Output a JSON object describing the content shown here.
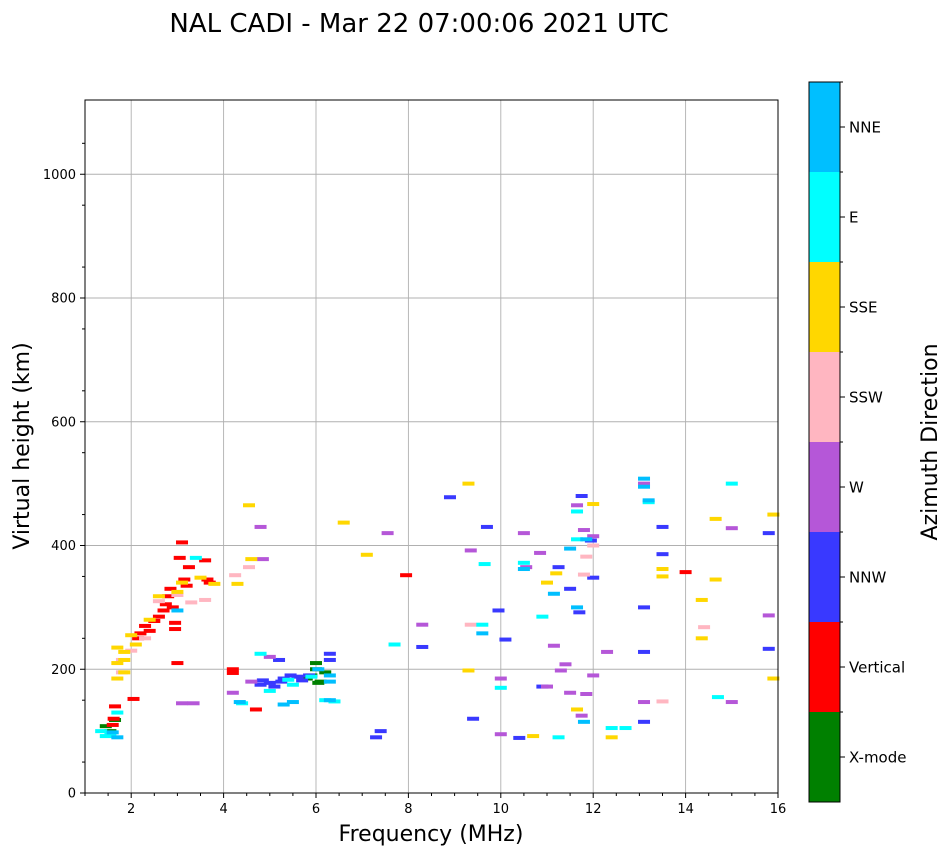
{
  "chart_data": {
    "type": "scatter",
    "title": "NAL CADI - Mar 22 07:00:06 2021 UTC",
    "xlabel": "Frequency (MHz)",
    "ylabel": "Virtual height (km)",
    "xlim": [
      1,
      16
    ],
    "ylim": [
      0,
      1120
    ],
    "xticks": [
      2,
      4,
      6,
      8,
      10,
      12,
      14,
      16
    ],
    "yticks": [
      0,
      200,
      400,
      600,
      800,
      1000
    ],
    "grid": true,
    "marker": "short horizontal dash",
    "colorbar": {
      "label": "Azimuth Direction",
      "categories": [
        {
          "name": "X-mode",
          "color": "#008000"
        },
        {
          "name": "Vertical",
          "color": "#ff0000"
        },
        {
          "name": "NNW",
          "color": "#3939ff"
        },
        {
          "name": "W",
          "color": "#b557d8"
        },
        {
          "name": "SSW",
          "color": "#ffb6c1"
        },
        {
          "name": "SSE",
          "color": "#ffd700"
        },
        {
          "name": "E",
          "color": "#00ffff"
        },
        {
          "name": "NNE",
          "color": "#00bfff"
        }
      ]
    },
    "series": [
      {
        "name": "X-mode",
        "points": [
          [
            5.9,
            190
          ],
          [
            6.0,
            200
          ],
          [
            6.0,
            210
          ],
          [
            6.1,
            180
          ],
          [
            6.2,
            195
          ],
          [
            5.8,
            185
          ],
          [
            1.65,
            118
          ],
          [
            1.55,
            100
          ],
          [
            1.45,
            108
          ],
          [
            6.05,
            178
          ]
        ]
      },
      {
        "name": "Vertical",
        "points": [
          [
            1.62,
            120
          ],
          [
            1.65,
            140
          ],
          [
            1.6,
            110
          ],
          [
            2.05,
            152
          ],
          [
            2.15,
            250
          ],
          [
            2.2,
            258
          ],
          [
            2.3,
            270
          ],
          [
            2.4,
            262
          ],
          [
            2.5,
            278
          ],
          [
            2.6,
            285
          ],
          [
            2.7,
            295
          ],
          [
            2.75,
            305
          ],
          [
            2.8,
            318
          ],
          [
            2.85,
            330
          ],
          [
            2.9,
            300
          ],
          [
            2.95,
            275
          ],
          [
            2.95,
            265
          ],
          [
            3.0,
            210
          ],
          [
            3.05,
            380
          ],
          [
            3.1,
            405
          ],
          [
            3.15,
            345
          ],
          [
            3.2,
            335
          ],
          [
            3.25,
            365
          ],
          [
            3.6,
            376
          ],
          [
            3.65,
            345
          ],
          [
            3.7,
            340
          ],
          [
            4.2,
            200
          ],
          [
            4.2,
            194
          ],
          [
            4.7,
            135
          ],
          [
            7.95,
            352
          ],
          [
            14.0,
            357
          ]
        ]
      },
      {
        "name": "NNW",
        "points": [
          [
            4.8,
            175
          ],
          [
            4.85,
            182
          ],
          [
            5.0,
            178
          ],
          [
            5.1,
            172
          ],
          [
            5.2,
            215
          ],
          [
            5.25,
            180
          ],
          [
            5.3,
            185
          ],
          [
            5.45,
            190
          ],
          [
            5.6,
            188
          ],
          [
            5.7,
            182
          ],
          [
            5.85,
            190
          ],
          [
            6.3,
            215
          ],
          [
            6.3,
            225
          ],
          [
            7.3,
            90
          ],
          [
            7.4,
            100
          ],
          [
            8.3,
            236
          ],
          [
            8.9,
            478
          ],
          [
            9.4,
            120
          ],
          [
            9.7,
            430
          ],
          [
            9.95,
            295
          ],
          [
            10.1,
            248
          ],
          [
            10.4,
            89
          ],
          [
            10.9,
            172
          ],
          [
            11.25,
            365
          ],
          [
            11.5,
            330
          ],
          [
            11.7,
            292
          ],
          [
            11.75,
            480
          ],
          [
            11.95,
            408
          ],
          [
            12.0,
            348
          ],
          [
            13.1,
            300
          ],
          [
            13.1,
            228
          ],
          [
            13.1,
            115
          ],
          [
            13.5,
            430
          ],
          [
            13.5,
            386
          ],
          [
            15.8,
            420
          ],
          [
            15.8,
            233
          ]
        ]
      },
      {
        "name": "W",
        "points": [
          [
            3.1,
            145
          ],
          [
            3.35,
            145
          ],
          [
            4.2,
            162
          ],
          [
            4.6,
            180
          ],
          [
            4.8,
            430
          ],
          [
            4.85,
            378
          ],
          [
            5.0,
            220
          ],
          [
            7.55,
            420
          ],
          [
            8.3,
            272
          ],
          [
            9.35,
            392
          ],
          [
            10.0,
            95
          ],
          [
            10.0,
            185
          ],
          [
            10.5,
            420
          ],
          [
            10.55,
            365
          ],
          [
            10.85,
            388
          ],
          [
            11.0,
            172
          ],
          [
            11.15,
            238
          ],
          [
            11.3,
            198
          ],
          [
            11.4,
            208
          ],
          [
            11.5,
            162
          ],
          [
            11.65,
            465
          ],
          [
            11.75,
            125
          ],
          [
            11.8,
            425
          ],
          [
            11.85,
            160
          ],
          [
            12.0,
            415
          ],
          [
            12.0,
            190
          ],
          [
            12.3,
            228
          ],
          [
            13.1,
            147
          ],
          [
            13.1,
            500
          ],
          [
            15.0,
            428
          ],
          [
            15.0,
            147
          ],
          [
            15.8,
            287
          ]
        ]
      },
      {
        "name": "SSW",
        "points": [
          [
            1.8,
            215
          ],
          [
            1.8,
            195
          ],
          [
            2.0,
            230
          ],
          [
            2.3,
            250
          ],
          [
            2.6,
            310
          ],
          [
            3.0,
            320
          ],
          [
            3.3,
            308
          ],
          [
            3.6,
            312
          ],
          [
            4.25,
            352
          ],
          [
            4.55,
            365
          ],
          [
            9.35,
            272
          ],
          [
            11.85,
            382
          ],
          [
            11.8,
            353
          ],
          [
            12.0,
            400
          ],
          [
            14.4,
            268
          ],
          [
            13.5,
            148
          ]
        ]
      },
      {
        "name": "SSE",
        "points": [
          [
            1.7,
            235
          ],
          [
            1.7,
            210
          ],
          [
            1.7,
            185
          ],
          [
            1.85,
            228
          ],
          [
            1.85,
            215
          ],
          [
            1.85,
            195
          ],
          [
            2.0,
            255
          ],
          [
            2.1,
            240
          ],
          [
            2.4,
            280
          ],
          [
            2.6,
            318
          ],
          [
            3.0,
            325
          ],
          [
            3.1,
            340
          ],
          [
            3.5,
            348
          ],
          [
            3.8,
            338
          ],
          [
            4.3,
            338
          ],
          [
            4.6,
            378
          ],
          [
            4.55,
            465
          ],
          [
            6.6,
            437
          ],
          [
            7.1,
            385
          ],
          [
            9.3,
            500
          ],
          [
            9.3,
            198
          ],
          [
            10.7,
            92
          ],
          [
            11.0,
            340
          ],
          [
            11.2,
            355
          ],
          [
            11.65,
            135
          ],
          [
            12.0,
            467
          ],
          [
            12.4,
            90
          ],
          [
            13.5,
            362
          ],
          [
            13.5,
            350
          ],
          [
            14.35,
            312
          ],
          [
            14.35,
            250
          ],
          [
            14.65,
            443
          ],
          [
            14.65,
            345
          ],
          [
            15.9,
            450
          ],
          [
            15.9,
            185
          ]
        ]
      },
      {
        "name": "E",
        "points": [
          [
            1.35,
            100
          ],
          [
            1.45,
            92
          ],
          [
            1.55,
            95
          ],
          [
            1.7,
            130
          ],
          [
            3.4,
            380
          ],
          [
            4.4,
            145
          ],
          [
            4.8,
            225
          ],
          [
            5.0,
            165
          ],
          [
            5.4,
            183
          ],
          [
            5.5,
            175
          ],
          [
            5.9,
            188
          ],
          [
            6.2,
            150
          ],
          [
            6.4,
            148
          ],
          [
            7.7,
            240
          ],
          [
            9.6,
            272
          ],
          [
            9.65,
            370
          ],
          [
            10.0,
            170
          ],
          [
            10.5,
            372
          ],
          [
            10.9,
            285
          ],
          [
            11.25,
            90
          ],
          [
            11.65,
            410
          ],
          [
            11.65,
            455
          ],
          [
            12.4,
            105
          ],
          [
            12.7,
            105
          ],
          [
            13.2,
            470
          ],
          [
            14.7,
            155
          ],
          [
            15.0,
            500
          ]
        ]
      },
      {
        "name": "NNE",
        "points": [
          [
            1.6,
            98
          ],
          [
            1.7,
            90
          ],
          [
            3.0,
            295
          ],
          [
            4.35,
            147
          ],
          [
            5.3,
            143
          ],
          [
            5.5,
            147
          ],
          [
            6.05,
            200
          ],
          [
            6.3,
            190
          ],
          [
            6.3,
            150
          ],
          [
            6.3,
            180
          ],
          [
            9.6,
            258
          ],
          [
            10.5,
            362
          ],
          [
            11.15,
            322
          ],
          [
            11.5,
            395
          ],
          [
            11.65,
            300
          ],
          [
            11.8,
            115
          ],
          [
            11.85,
            410
          ],
          [
            13.1,
            508
          ],
          [
            13.1,
            495
          ],
          [
            13.2,
            473
          ]
        ]
      }
    ]
  }
}
